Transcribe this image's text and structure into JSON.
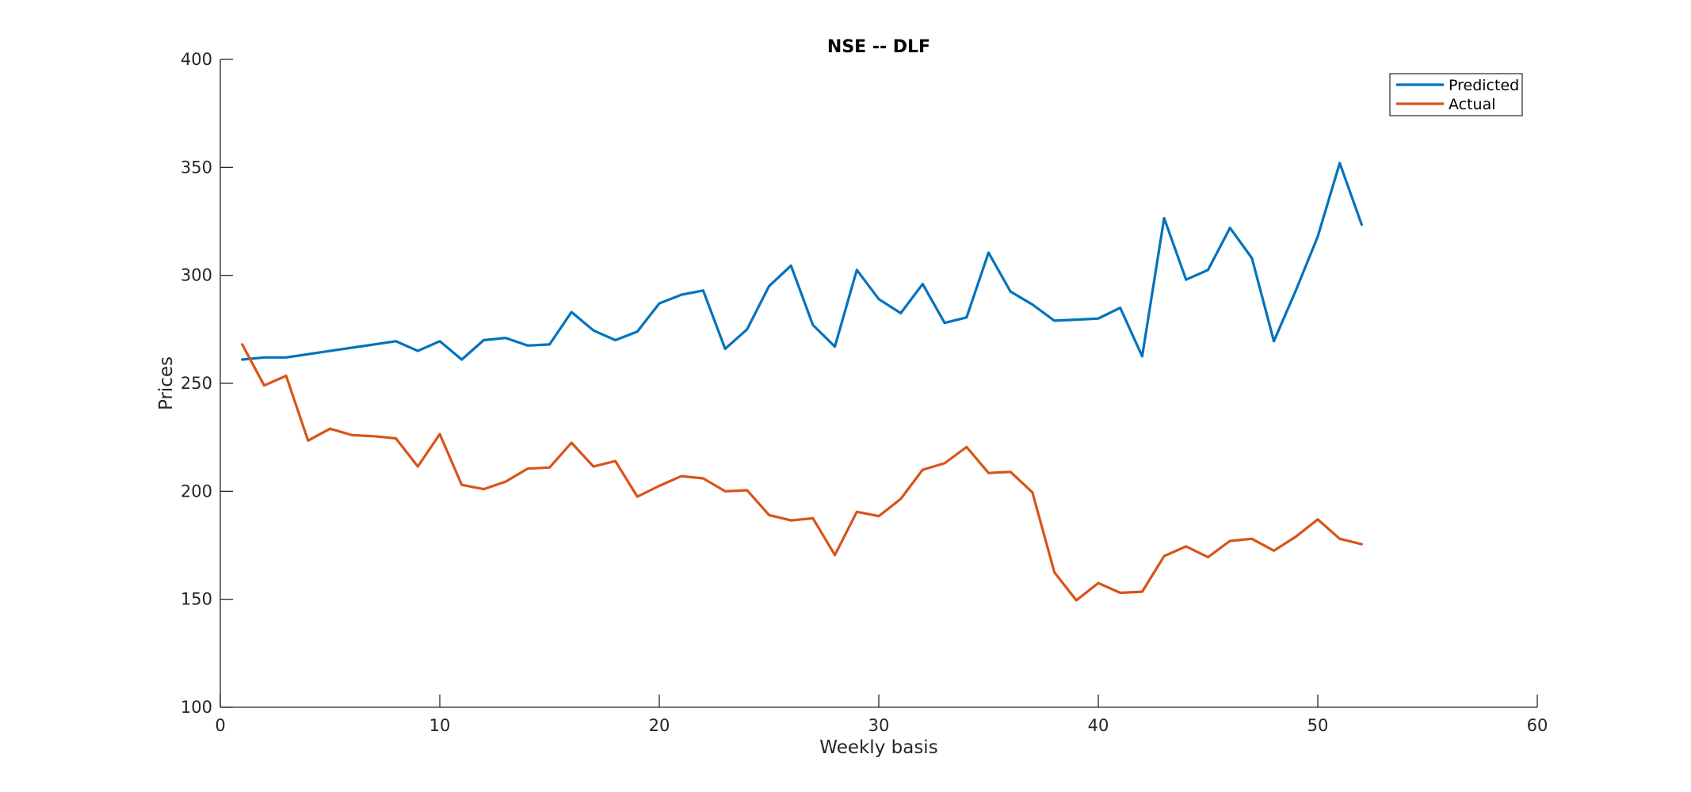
{
  "chart_data": {
    "type": "line",
    "title": "NSE -- DLF",
    "xlabel": "Weekly basis",
    "ylabel": "Prices",
    "xlim": [
      0,
      60
    ],
    "ylim": [
      100,
      400
    ],
    "xticks": [
      0,
      10,
      20,
      30,
      40,
      50,
      60
    ],
    "yticks": [
      100,
      150,
      200,
      250,
      300,
      350,
      400
    ],
    "grid": false,
    "legend_position": "top-right",
    "x": [
      1,
      2,
      3,
      4,
      5,
      6,
      7,
      8,
      9,
      10,
      11,
      12,
      13,
      14,
      15,
      16,
      17,
      18,
      19,
      20,
      21,
      22,
      23,
      24,
      25,
      26,
      27,
      28,
      29,
      30,
      31,
      32,
      33,
      34,
      35,
      36,
      37,
      38,
      39,
      40,
      41,
      42,
      43,
      44,
      45,
      46,
      47,
      48,
      49,
      50,
      51,
      52
    ],
    "series": [
      {
        "name": "Predicted",
        "color": "#0072BD",
        "values": [
          261,
          262,
          262,
          263.5,
          265,
          266.5,
          268,
          269.5,
          265,
          269.5,
          261,
          270,
          271,
          267.5,
          268,
          283,
          274.5,
          270,
          274,
          287,
          291,
          293,
          266,
          275,
          295,
          304.5,
          277,
          267,
          302.5,
          289,
          282.5,
          296,
          278,
          280.5,
          310.5,
          292.5,
          286.5,
          279,
          279.5,
          280,
          285,
          262.5,
          326.5,
          298,
          302.5,
          322,
          308,
          269.5,
          293,
          318,
          352,
          323.5
        ]
      },
      {
        "name": "Actual",
        "color": "#D95319",
        "values": [
          268,
          249,
          253.5,
          223.5,
          229,
          226,
          225.5,
          224.5,
          211.5,
          226.5,
          203,
          201,
          204.5,
          210.5,
          211,
          222.5,
          211.5,
          214,
          197.5,
          202.5,
          207,
          206,
          200,
          200.5,
          189,
          186.5,
          187.5,
          170.5,
          190.5,
          188.5,
          196.5,
          210,
          213,
          220.5,
          208.5,
          209,
          199.5,
          162.5,
          149.5,
          157.5,
          153,
          153.5,
          170,
          174.5,
          169.5,
          177,
          178,
          172.5,
          179,
          187,
          178,
          175.5
        ]
      }
    ]
  }
}
